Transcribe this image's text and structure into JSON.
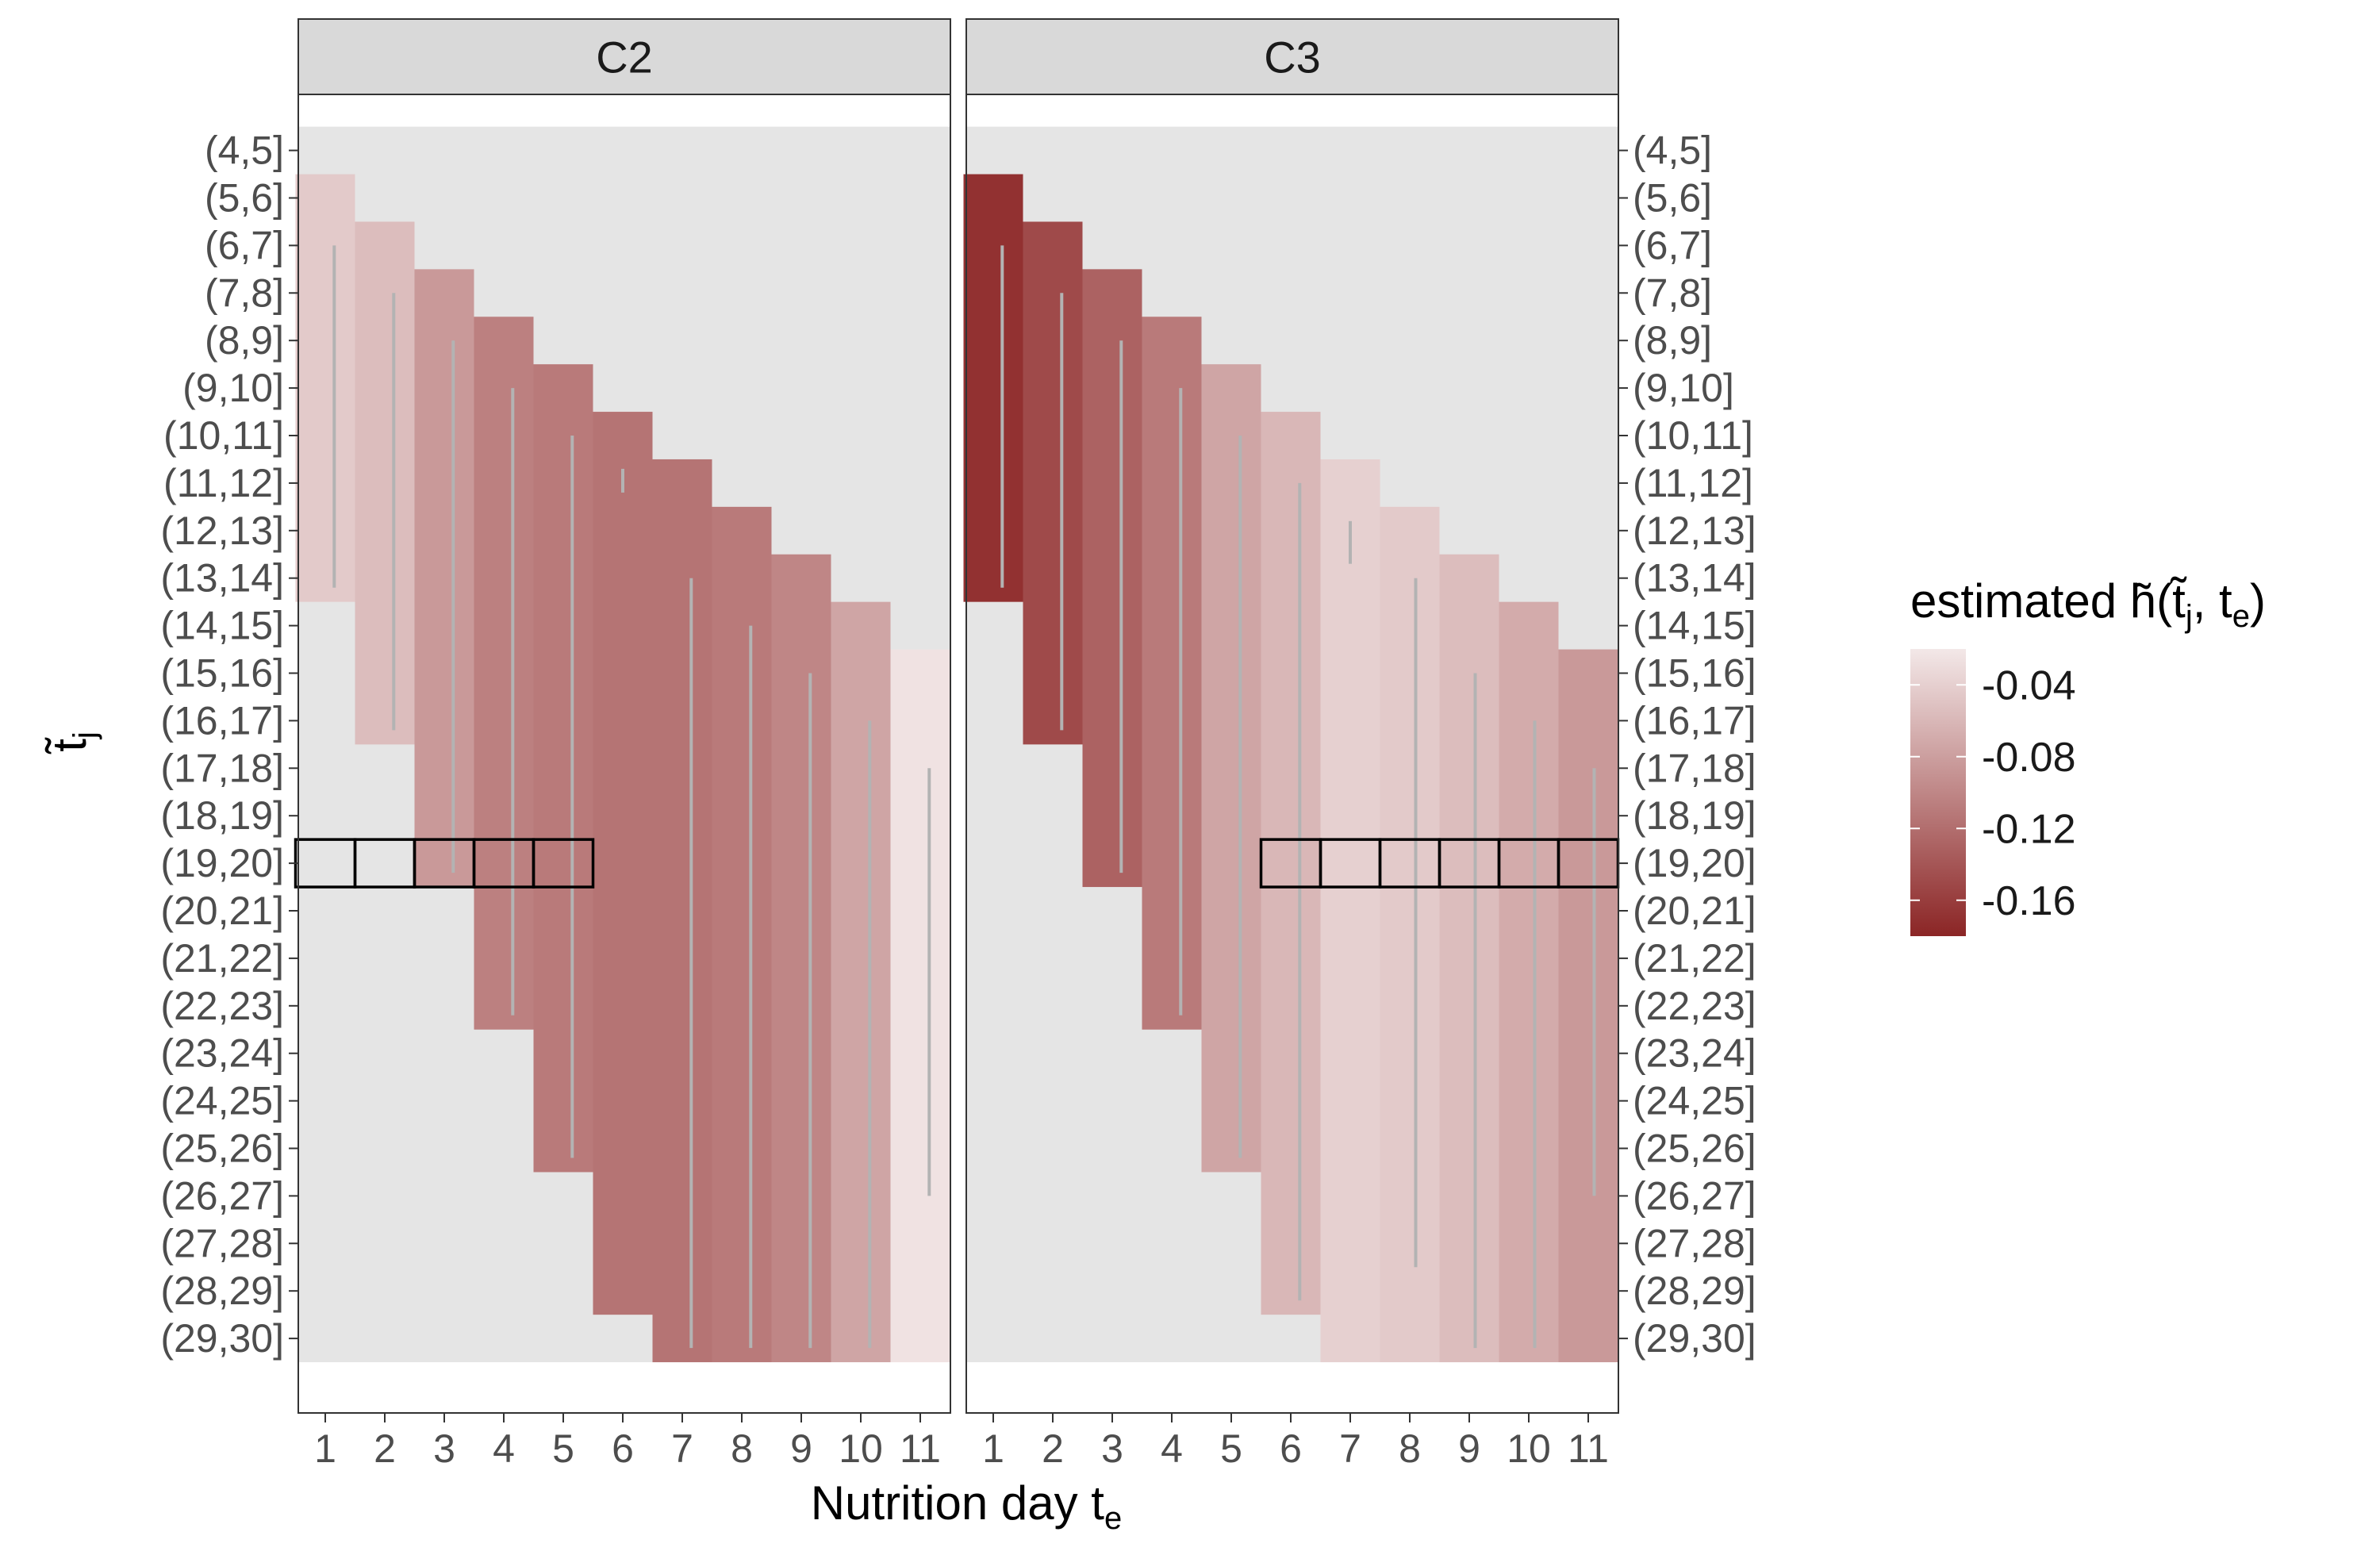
{
  "chart_data": {
    "type": "heatmap",
    "facets": [
      "C2",
      "C3"
    ],
    "xlabel": "Nutrition day",
    "xlabel_math": "t",
    "xlabel_math_sub": "e",
    "ylabel_math": "t̃",
    "ylabel_math_sub": "j",
    "x_ticks": [
      "1",
      "2",
      "3",
      "4",
      "5",
      "6",
      "7",
      "8",
      "9",
      "10",
      "11"
    ],
    "y_ticks_left": [
      "(4,5]",
      "(5,6]",
      "(6,7]",
      "(7,8]",
      "(8,9]",
      "(9,10]",
      "(10,11]",
      "(11,12]",
      "(12,13]",
      "(13,14]",
      "(14,15]",
      "(15,16]",
      "(16,17]",
      "(17,18]",
      "(18,19]",
      "(19,20]",
      "(20,21]",
      "(21,22]",
      "(22,23]",
      "(23,24]",
      "(24,25]",
      "(25,26]",
      "(26,27]",
      "(27,28]",
      "(28,29]",
      "(29,30]"
    ],
    "y_ticks_right": [
      "(4,5]",
      "(5,6]",
      "(6,7]",
      "(7,8]",
      "(8,9]",
      "(9,10]",
      "(10,11]",
      "(11,12]",
      "(12,13]",
      "(13,14]",
      "(14,15]",
      "(15,16]",
      "(16,17]",
      "(17,18]",
      "(18,19]",
      "(19,20]",
      "(20,21]",
      "(21,22]",
      "(22,23]",
      "(23,24]",
      "(24,25]",
      "(25,26]",
      "(26,27]",
      "(27,28]",
      "(28,29]",
      "(29,30]"
    ],
    "legend": {
      "title": "estimated",
      "title_math": "h̃(t̃",
      "title_math_sub1": "j",
      "title_math_mid": ", t",
      "title_math_sub2": "e",
      "title_math_end": ")",
      "ticks": [
        "-0.04",
        "-0.08",
        "-0.12",
        "-0.16"
      ],
      "tick_values": [
        -0.04,
        -0.08,
        -0.12,
        -0.16
      ],
      "range": [
        -0.18,
        -0.02
      ],
      "color_low": "#8b2525",
      "color_high": "#f3e8e8"
    },
    "colors": {
      "panel_bg": "#e5e5e5",
      "strip_bg": "#d9d9d9",
      "line": "#b3b3b3",
      "highlight_box": "#000000"
    },
    "panels": [
      {
        "name": "C2",
        "columns": [
          {
            "te": 1,
            "start": 1,
            "end": 10,
            "value": -0.045,
            "line": [
              [
                1.15,
                2.5
              ],
              [
                1.15,
                9.7
              ]
            ]
          },
          {
            "te": 2,
            "start": 2,
            "end": 13,
            "value": -0.055,
            "line": [
              [
                2.15,
                3.5
              ],
              [
                2.15,
                12.7
              ]
            ]
          },
          {
            "te": 3,
            "start": 3,
            "end": 16,
            "value": -0.085,
            "line": [
              [
                3.15,
                4.5
              ],
              [
                3.15,
                15.7
              ]
            ]
          },
          {
            "te": 4,
            "start": 4,
            "end": 19,
            "value": -0.105,
            "line": [
              [
                4.15,
                5.5
              ],
              [
                4.15,
                18.7
              ]
            ]
          },
          {
            "te": 5,
            "start": 5,
            "end": 22,
            "value": -0.11,
            "line": [
              [
                5.15,
                6.5
              ],
              [
                5.15,
                21.7
              ]
            ]
          },
          {
            "te": 6,
            "start": 6,
            "end": 25,
            "value": -0.115,
            "line": [
              [
                6.0,
                7.2
              ],
              [
                6.0,
                7.7
              ]
            ]
          },
          {
            "te": 7,
            "start": 7,
            "end": 26,
            "value": -0.115,
            "line": [
              [
                7.15,
                9.5
              ],
              [
                7.15,
                25.7
              ]
            ]
          },
          {
            "te": 8,
            "start": 8,
            "end": 26,
            "value": -0.11,
            "line": [
              [
                8.15,
                10.5
              ],
              [
                8.15,
                25.7
              ]
            ]
          },
          {
            "te": 9,
            "start": 9,
            "end": 26,
            "value": -0.1,
            "line": [
              [
                9.15,
                11.5
              ],
              [
                9.15,
                25.7
              ]
            ]
          },
          {
            "te": 10,
            "start": 10,
            "end": 26,
            "value": -0.075,
            "line": [
              [
                10.15,
                12.5
              ],
              [
                10.15,
                25.7
              ]
            ]
          },
          {
            "te": 11,
            "start": 11,
            "end": 26,
            "value": -0.025,
            "line": [
              [
                11.15,
                13.5
              ],
              [
                11.15,
                22.5
              ]
            ]
          }
        ],
        "highlight": {
          "row": 15,
          "cols": [
            1,
            2,
            3,
            4,
            5
          ]
        }
      },
      {
        "name": "C3",
        "columns": [
          {
            "te": 1,
            "start": 1,
            "end": 10,
            "value": -0.17,
            "line": [
              [
                1.15,
                2.5
              ],
              [
                1.15,
                9.7
              ]
            ]
          },
          {
            "te": 2,
            "start": 2,
            "end": 13,
            "value": -0.15,
            "line": [
              [
                2.15,
                3.5
              ],
              [
                2.15,
                12.7
              ]
            ]
          },
          {
            "te": 3,
            "start": 3,
            "end": 16,
            "value": -0.13,
            "line": [
              [
                3.15,
                4.5
              ],
              [
                3.15,
                15.7
              ]
            ]
          },
          {
            "te": 4,
            "start": 4,
            "end": 19,
            "value": -0.11,
            "line": [
              [
                4.15,
                5.5
              ],
              [
                4.15,
                18.7
              ]
            ]
          },
          {
            "te": 5,
            "start": 5,
            "end": 22,
            "value": -0.075,
            "line": [
              [
                5.15,
                6.5
              ],
              [
                5.15,
                21.7
              ]
            ]
          },
          {
            "te": 6,
            "start": 6,
            "end": 25,
            "value": -0.06,
            "line": [
              [
                6.15,
                7.5
              ],
              [
                6.15,
                24.7
              ]
            ]
          },
          {
            "te": 7,
            "start": 7,
            "end": 26,
            "value": -0.04,
            "line": [
              [
                7.0,
                8.3
              ],
              [
                7.0,
                9.2
              ]
            ]
          },
          {
            "te": 8,
            "start": 8,
            "end": 26,
            "value": -0.045,
            "line": [
              [
                8.1,
                9.5
              ],
              [
                8.1,
                24.0
              ]
            ]
          },
          {
            "te": 9,
            "start": 9,
            "end": 26,
            "value": -0.055,
            "line": [
              [
                9.1,
                11.5
              ],
              [
                9.1,
                25.7
              ]
            ]
          },
          {
            "te": 10,
            "start": 10,
            "end": 26,
            "value": -0.07,
            "line": [
              [
                10.1,
                12.5
              ],
              [
                10.1,
                25.7
              ]
            ]
          },
          {
            "te": 11,
            "start": 11,
            "end": 26,
            "value": -0.085,
            "line": [
              [
                11.1,
                13.5
              ],
              [
                11.1,
                22.5
              ]
            ]
          }
        ],
        "highlight": {
          "row": 15,
          "cols": [
            6,
            7,
            8,
            9,
            10,
            11
          ]
        }
      }
    ]
  }
}
